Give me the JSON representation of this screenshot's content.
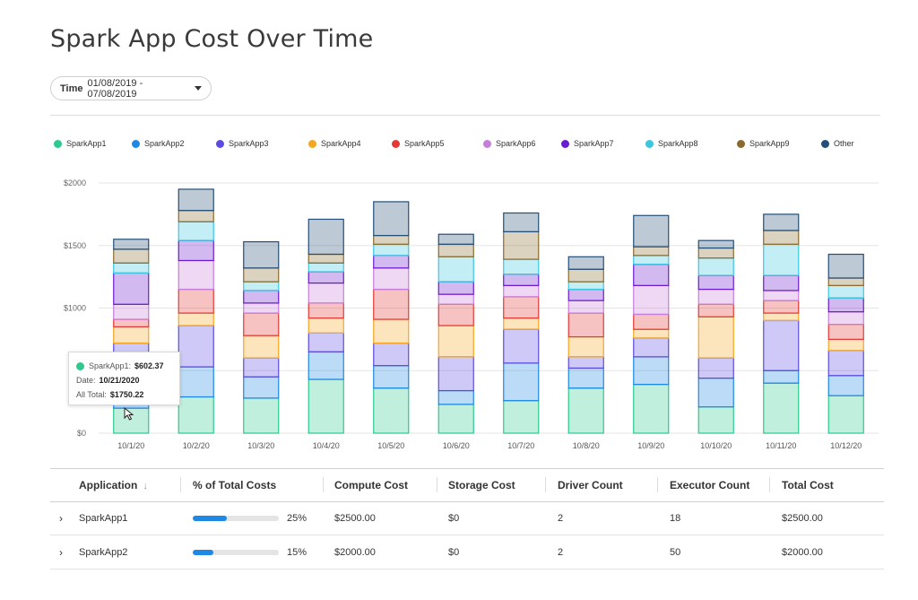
{
  "page": {
    "title": "Spark App Cost Over Time"
  },
  "filter": {
    "label": "Time",
    "value": "01/08/2019 - 07/08/2019"
  },
  "legend": [
    {
      "name": "SparkApp1",
      "color": "#2dc98f"
    },
    {
      "name": "SparkApp2",
      "color": "#1e88e5"
    },
    {
      "name": "SparkApp3",
      "color": "#5c4be0"
    },
    {
      "name": "SparkApp4",
      "color": "#f5a623"
    },
    {
      "name": "SparkApp5",
      "color": "#e53935"
    },
    {
      "name": "SparkApp6",
      "color": "#c77ddb"
    },
    {
      "name": "SparkApp7",
      "color": "#6a1bd1"
    },
    {
      "name": "SparkApp8",
      "color": "#3cc6e0"
    },
    {
      "name": "SparkApp9",
      "color": "#8a6a2f"
    },
    {
      "name": "Other",
      "color": "#234e78"
    }
  ],
  "chart_data": {
    "type": "bar",
    "stacked": true,
    "categories": [
      "10/1/20",
      "10/2/20",
      "10/3/20",
      "10/4/20",
      "10/5/20",
      "10/6/20",
      "10/7/20",
      "10/8/20",
      "10/9/20",
      "10/10/20",
      "10/11/20",
      "10/12/20"
    ],
    "ylim": [
      0,
      2000
    ],
    "yticks": [
      "$0",
      "$500",
      "$1000",
      "$1500",
      "$2000"
    ],
    "grid": true,
    "series": [
      {
        "name": "SparkApp1",
        "values": [
          200,
          290,
          280,
          430,
          360,
          230,
          260,
          360,
          390,
          210,
          400,
          300
        ]
      },
      {
        "name": "SparkApp2",
        "values": [
          160,
          240,
          170,
          220,
          180,
          110,
          300,
          160,
          220,
          230,
          100,
          160
        ]
      },
      {
        "name": "SparkApp3",
        "values": [
          360,
          330,
          150,
          150,
          180,
          270,
          270,
          90,
          150,
          160,
          400,
          200
        ]
      },
      {
        "name": "SparkApp4",
        "values": [
          130,
          100,
          180,
          120,
          190,
          250,
          90,
          160,
          70,
          330,
          60,
          90
        ]
      },
      {
        "name": "SparkApp5",
        "values": [
          60,
          190,
          180,
          120,
          240,
          170,
          170,
          190,
          120,
          100,
          100,
          120
        ]
      },
      {
        "name": "SparkApp6",
        "values": [
          120,
          230,
          80,
          160,
          170,
          80,
          90,
          100,
          230,
          120,
          80,
          100
        ]
      },
      {
        "name": "SparkApp7",
        "values": [
          250,
          160,
          100,
          90,
          100,
          100,
          90,
          90,
          170,
          110,
          120,
          110
        ]
      },
      {
        "name": "SparkApp8",
        "values": [
          80,
          150,
          70,
          70,
          90,
          200,
          120,
          60,
          70,
          140,
          250,
          100
        ]
      },
      {
        "name": "SparkApp9",
        "values": [
          110,
          90,
          110,
          70,
          70,
          100,
          220,
          100,
          70,
          80,
          110,
          60
        ]
      },
      {
        "name": "Other",
        "values": [
          80,
          170,
          210,
          280,
          270,
          80,
          150,
          100,
          250,
          60,
          130,
          190
        ]
      }
    ]
  },
  "tooltip": {
    "series": "SparkApp1:",
    "value": "$602.37",
    "date_label": "Date:",
    "date": "10/21/2020",
    "total_label": "All Total:",
    "total": "$1750.22"
  },
  "table": {
    "headers": [
      "Application",
      "% of Total Costs",
      "Compute Cost",
      "Storage Cost",
      "Driver Count",
      "Executor Count",
      "Total Cost"
    ],
    "rows": [
      {
        "application": "SparkApp1",
        "percent_label": "25%",
        "percent": 0.25,
        "compute": "$2500.00",
        "storage": "$0",
        "driver": "2",
        "executor": "18",
        "total": "$2500.00"
      },
      {
        "application": "SparkApp2",
        "percent_label": "15%",
        "percent": 0.15,
        "compute": "$2000.00",
        "storage": "$0",
        "driver": "2",
        "executor": "50",
        "total": "$2000.00"
      }
    ]
  }
}
